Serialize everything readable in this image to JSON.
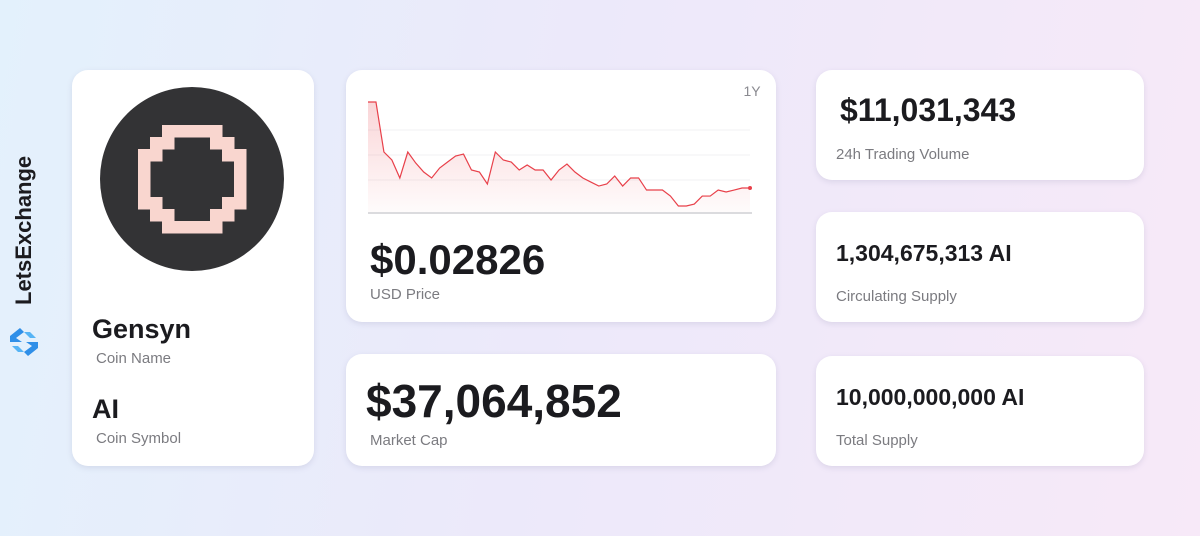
{
  "brand": "LetsExchange",
  "coin": {
    "name": "Gensyn",
    "name_label": "Coin Name",
    "symbol": "AI",
    "symbol_label": "Coin Symbol"
  },
  "price": {
    "value": "$0.02826",
    "label": "USD Price"
  },
  "market_cap": {
    "value": "$37,064,852",
    "label": "Market Cap"
  },
  "stats": [
    {
      "value": "$11,031,343",
      "label": "24h Trading Volume"
    },
    {
      "value": "1,304,675,313 AI",
      "label": "Circulating Supply"
    },
    {
      "value": "10,000,000,000 AI",
      "label": "Total Supply"
    }
  ],
  "chart_data": {
    "type": "line",
    "period": "1Y",
    "color": "#e8404a",
    "ylim": [
      0,
      0.132
    ],
    "values": [
      0.1296,
      0.1296,
      0.0707,
      0.0613,
      0.0401,
      0.0707,
      0.0577,
      0.0471,
      0.0401,
      0.0518,
      0.0589,
      0.066,
      0.0683,
      0.0495,
      0.0471,
      0.033,
      0.0707,
      0.0613,
      0.0589,
      0.0495,
      0.0554,
      0.0495,
      0.0495,
      0.0377,
      0.0495,
      0.0565,
      0.0471,
      0.0401,
      0.0353,
      0.0306,
      0.033,
      0.0424,
      0.0306,
      0.0401,
      0.0401,
      0.0259,
      0.0259,
      0.0259,
      0.0188,
      0.0071,
      0.0071,
      0.0094,
      0.0188,
      0.0188,
      0.0259,
      0.0236,
      0.0259,
      0.0283,
      0.0283
    ]
  }
}
